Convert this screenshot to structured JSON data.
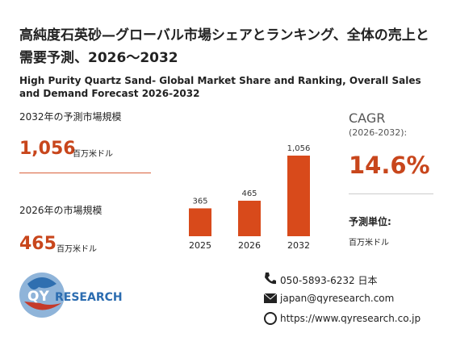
{
  "header": {
    "title_ja": "高純度石英砂—グローバル市場シェアとランキング、全体の売上と需要予測、2026～2032",
    "title_en": "High Purity Quartz Sand- Global Market Share and Ranking, Overall Sales and Demand Forecast 2026-2032"
  },
  "summary": {
    "forecast_label": "2032年の予測市場規模",
    "forecast_value": "1,056",
    "forecast_unit": "百万米ドル",
    "current_label": "2026年の市場規模",
    "current_value": "465",
    "current_unit": "百万米ドル"
  },
  "chart_data": {
    "type": "bar",
    "categories": [
      "2025",
      "2026",
      "2032"
    ],
    "values": [
      365,
      465,
      1056
    ],
    "value_labels": [
      "365",
      "465",
      "1,056"
    ],
    "color": "#d84a1b"
  },
  "cagr": {
    "label": "CAGR",
    "period": "(2026-2032):",
    "value": "14.6%",
    "unit_label": "予測単位:",
    "unit": "百万米ドル"
  },
  "contact": {
    "phone": "050-5893-6232 日本",
    "email": "japan@qyresearch.com",
    "url": "https://www.qyresearch.co.jp"
  },
  "logo": {
    "part1": "QY",
    "part2": "RESEARCH"
  }
}
